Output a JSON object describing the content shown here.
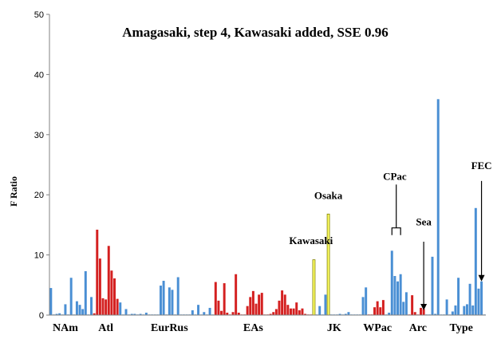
{
  "chart_data": {
    "type": "bar",
    "title": "Amagasaki, step 4, Kawasaki added, SSE 0.96",
    "ylabel": "F Ratio",
    "xlabel": "",
    "ylim": [
      0,
      50
    ],
    "yticks": [
      0,
      10,
      20,
      30,
      40,
      50
    ],
    "grid": false,
    "colors": {
      "blue": "#4a8fd4",
      "red": "#d42020",
      "yellow": "#ffff66",
      "axis": "#808080"
    },
    "values": [
      4.5,
      0.1,
      0.2,
      0.3,
      0.1,
      1.8,
      0.1,
      6.2,
      0.1,
      2.3,
      1.7,
      1.0,
      7.3,
      0.1,
      3.0,
      0.3,
      14.2,
      9.4,
      2.8,
      2.6,
      11.5,
      7.4,
      6.1,
      2.7,
      2.1,
      0.1,
      1.0,
      0.1,
      0.2,
      0.2,
      0.1,
      0.2,
      0.1,
      0.4,
      0.1,
      0.1,
      0.1,
      0.1,
      4.9,
      5.7,
      0.1,
      4.6,
      4.2,
      0.1,
      6.3,
      0.1,
      0.1,
      0.1,
      0.1,
      0.8,
      0.1,
      1.7,
      0.1,
      0.5,
      0.1,
      1.2,
      0.1,
      5.5,
      2.4,
      0.7,
      5.3,
      0.4,
      0.1,
      0.5,
      6.8,
      0.4,
      0.1,
      0.1,
      1.5,
      3.0,
      4.0,
      1.9,
      3.4,
      3.7,
      0.1,
      0.1,
      0.2,
      0.5,
      1.0,
      2.4,
      4.1,
      3.4,
      1.7,
      1.1,
      1.1,
      2.1,
      0.8,
      1.1,
      0.2,
      0.1,
      0.1,
      9.2,
      0.1,
      1.5,
      0.1,
      3.4,
      16.8,
      0.1,
      0.1,
      0.1,
      0.2,
      0.1,
      0.2,
      0.5,
      0.1,
      0.1,
      0.1,
      0.1,
      3.0,
      4.6,
      0.1,
      0.1,
      1.3,
      2.3,
      1.3,
      2.5,
      0.1,
      0.4,
      10.7,
      6.5,
      5.6,
      6.8,
      2.2,
      3.8,
      0.1,
      3.3,
      0.5,
      0.1,
      1.2,
      1.0,
      0.1,
      0.1,
      9.7,
      0.2,
      35.9,
      0.1,
      0.1,
      2.6,
      0.1,
      0.6,
      1.6,
      6.2,
      0.1,
      1.5,
      1.8,
      5.2,
      1.6,
      17.8,
      4.4,
      5.6,
      0.1
    ],
    "bar_colors": [
      "blue",
      "blue",
      "blue",
      "blue",
      "blue",
      "blue",
      "blue",
      "blue",
      "blue",
      "blue",
      "blue",
      "blue",
      "blue",
      "blue",
      "blue",
      "red",
      "red",
      "red",
      "red",
      "red",
      "red",
      "red",
      "red",
      "red",
      "blue",
      "blue",
      "blue",
      "blue",
      "blue",
      "blue",
      "blue",
      "blue",
      "blue",
      "blue",
      "blue",
      "blue",
      "blue",
      "blue",
      "blue",
      "blue",
      "blue",
      "blue",
      "blue",
      "blue",
      "blue",
      "blue",
      "blue",
      "blue",
      "blue",
      "blue",
      "blue",
      "blue",
      "blue",
      "blue",
      "blue",
      "blue",
      "blue",
      "red",
      "red",
      "red",
      "red",
      "red",
      "red",
      "red",
      "red",
      "red",
      "red",
      "red",
      "red",
      "red",
      "red",
      "red",
      "red",
      "red",
      "red",
      "red",
      "red",
      "red",
      "red",
      "red",
      "red",
      "red",
      "red",
      "red",
      "red",
      "red",
      "red",
      "red",
      "red",
      "red",
      "red",
      "yellow",
      "blue",
      "blue",
      "blue",
      "blue",
      "yellow",
      "blue",
      "blue",
      "blue",
      "blue",
      "blue",
      "blue",
      "blue",
      "blue",
      "blue",
      "blue",
      "blue",
      "blue",
      "blue",
      "red",
      "red",
      "red",
      "red",
      "red",
      "red",
      "blue",
      "blue",
      "blue",
      "blue",
      "blue",
      "blue",
      "blue",
      "blue",
      "red",
      "red",
      "red",
      "red",
      "red",
      "red",
      "blue",
      "blue",
      "blue",
      "blue",
      "blue",
      "blue",
      "blue",
      "blue",
      "blue",
      "blue",
      "blue",
      "blue",
      "blue",
      "blue",
      "blue",
      "blue",
      "blue",
      "blue",
      "blue",
      "blue",
      "blue"
    ],
    "group_labels": [
      {
        "text": "NAm",
        "bar": 5
      },
      {
        "text": "Atl",
        "bar": 19
      },
      {
        "text": "EurRus",
        "bar": 41
      },
      {
        "text": "EAs",
        "bar": 70
      },
      {
        "text": "JK",
        "bar": 98
      },
      {
        "text": "WPac",
        "bar": 113
      },
      {
        "text": "Arc",
        "bar": 127
      },
      {
        "text": "Type",
        "bar": 142
      }
    ],
    "annotations": [
      {
        "text": "Osaka",
        "bar": 96,
        "arrow": "none",
        "text_value": 19.3
      },
      {
        "text": "Kawasaki",
        "bar": 90,
        "arrow": "none",
        "text_value": 11.8
      },
      {
        "text": "CPac",
        "bar": 119,
        "arrow": "bracket",
        "text_value": 22.5,
        "bar_from": 118,
        "bar_to": 121,
        "bracket_top": 14.5,
        "bracket_bottom": 13.3
      },
      {
        "text": "Sea",
        "bar": 129,
        "arrow": "down",
        "text_value": 14.9,
        "arrow_from": 12.2,
        "arrow_to": 0.8
      },
      {
        "text": "FEC",
        "bar": 149,
        "arrow": "down",
        "text_value": 24.3,
        "arrow_from": 22.3,
        "arrow_to": 5.6
      }
    ]
  }
}
